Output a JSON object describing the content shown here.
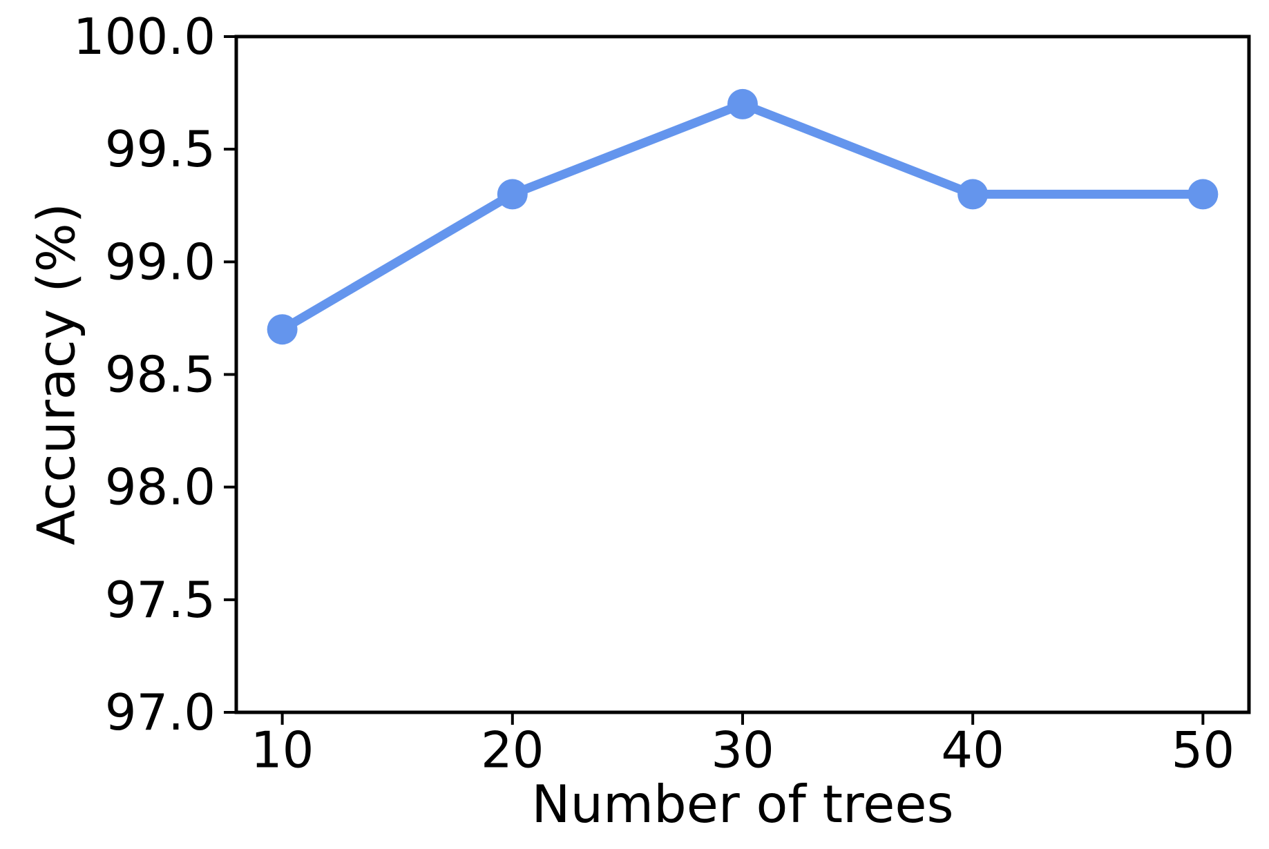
{
  "chart_data": {
    "type": "line",
    "title": "",
    "xlabel": "Number of trees",
    "ylabel": "Accuracy (%)",
    "x": [
      10,
      20,
      30,
      40,
      50
    ],
    "series": [
      {
        "name": "accuracy",
        "values": [
          98.7,
          99.3,
          99.7,
          99.3,
          99.3
        ]
      }
    ],
    "xlim": [
      8,
      52
    ],
    "ylim": [
      97.0,
      100.0
    ],
    "xticks": {
      "values": [
        10,
        20,
        30,
        40,
        50
      ],
      "labels": [
        "10",
        "20",
        "30",
        "40",
        "50"
      ]
    },
    "yticks": {
      "values": [
        97.0,
        97.5,
        98.0,
        98.5,
        99.0,
        99.5,
        100.0
      ],
      "labels": [
        "97.0",
        "97.5",
        "98.0",
        "98.5",
        "99.0",
        "99.5",
        "100.0"
      ]
    },
    "grid": false,
    "legend": false,
    "marker": "circle",
    "colors": {
      "line": "#6495ED",
      "marker": "#6495ED",
      "frame": "#000000",
      "tick_label": "#000000",
      "background": "#ffffff"
    }
  }
}
